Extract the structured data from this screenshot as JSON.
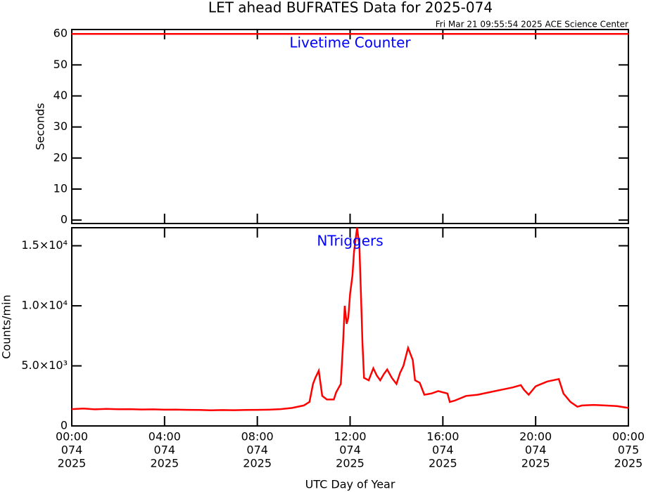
{
  "chart_data": [
    {
      "type": "line",
      "title": "LET ahead BUFRATES Data for 2025-074",
      "subtitle": "Fri Mar 21 09:55:54 2025 ACE Science Center",
      "panel_label": "Livetime Counter",
      "ylabel": "Seconds",
      "xlim": [
        0,
        24
      ],
      "xticks": [
        0,
        4,
        8,
        12,
        16,
        20,
        24
      ],
      "ylim": [
        -1.1,
        61.4
      ],
      "yticks": [
        0,
        10,
        20,
        30,
        40,
        50,
        60
      ],
      "x": [
        0,
        24
      ],
      "series": [
        {
          "name": "Livetime Counter",
          "color": "#ff0000",
          "values": [
            60,
            60
          ]
        }
      ]
    },
    {
      "type": "line",
      "panel_label": "NTriggers",
      "ylabel": "Counts/min",
      "xlabel": "UTC Day of Year",
      "xlim": [
        0,
        24
      ],
      "xticks": [
        {
          "value": 0,
          "label": [
            "00:00",
            "074",
            "2025"
          ]
        },
        {
          "value": 4,
          "label": [
            "04:00",
            "074",
            "2025"
          ]
        },
        {
          "value": 8,
          "label": [
            "08:00",
            "074",
            "2025"
          ]
        },
        {
          "value": 12,
          "label": [
            "12:00",
            "074",
            "2025"
          ]
        },
        {
          "value": 16,
          "label": [
            "16:00",
            "074",
            "2025"
          ]
        },
        {
          "value": 20,
          "label": [
            "20:00",
            "074",
            "2025"
          ]
        },
        {
          "value": 24,
          "label": [
            "00:00",
            "075",
            "2025"
          ]
        }
      ],
      "ylim": [
        0,
        16500
      ],
      "yticks": [
        0,
        {
          "value": 5000,
          "label": "5.0×10³"
        },
        {
          "value": 10000,
          "label": "1.0×10⁴"
        },
        {
          "value": 15000,
          "label": "1.5×10⁴"
        }
      ],
      "x": [
        0,
        0.5,
        1,
        1.5,
        2,
        2.5,
        3,
        3.5,
        4,
        4.5,
        5,
        5.5,
        6,
        6.5,
        7,
        7.5,
        8,
        8.5,
        9,
        9.5,
        10,
        10.25,
        10.4,
        10.5,
        10.65,
        10.8,
        11,
        11.3,
        11.4,
        11.6,
        11.7,
        11.77,
        11.85,
        11.92,
        12.0,
        12.1,
        12.17,
        12.3,
        12.4,
        12.5,
        12.53,
        12.6,
        12.8,
        13.0,
        13.15,
        13.3,
        13.45,
        13.6,
        13.8,
        14.0,
        14.15,
        14.3,
        14.5,
        14.7,
        14.8,
        15.0,
        15.2,
        15.5,
        15.8,
        16.2,
        16.3,
        16.5,
        17,
        17.5,
        18,
        18.5,
        19,
        19.36,
        19.5,
        19.7,
        20,
        20.5,
        21.0,
        21.2,
        21.5,
        21.8,
        22,
        22.5,
        23,
        23.5,
        24
      ],
      "series": [
        {
          "name": "NTriggers",
          "color": "#ff0000",
          "values": [
            1400,
            1450,
            1380,
            1420,
            1390,
            1400,
            1370,
            1380,
            1350,
            1360,
            1340,
            1330,
            1300,
            1320,
            1310,
            1330,
            1340,
            1350,
            1400,
            1500,
            1700,
            2000,
            3500,
            4000,
            4600,
            2500,
            2200,
            2200,
            2800,
            3500,
            7000,
            10000,
            8500,
            9000,
            11000,
            12500,
            14500,
            16500,
            15000,
            9000,
            7000,
            4000,
            3800,
            4800,
            4200,
            3800,
            4300,
            4700,
            4000,
            3500,
            4400,
            5000,
            6500,
            5500,
            3800,
            3600,
            2600,
            2700,
            2900,
            2700,
            2000,
            2100,
            2500,
            2600,
            2800,
            3000,
            3200,
            3400,
            3000,
            2600,
            3300,
            3700,
            3900,
            2700,
            2000,
            1600,
            1700,
            1750,
            1700,
            1650,
            1500
          ]
        }
      ]
    }
  ]
}
